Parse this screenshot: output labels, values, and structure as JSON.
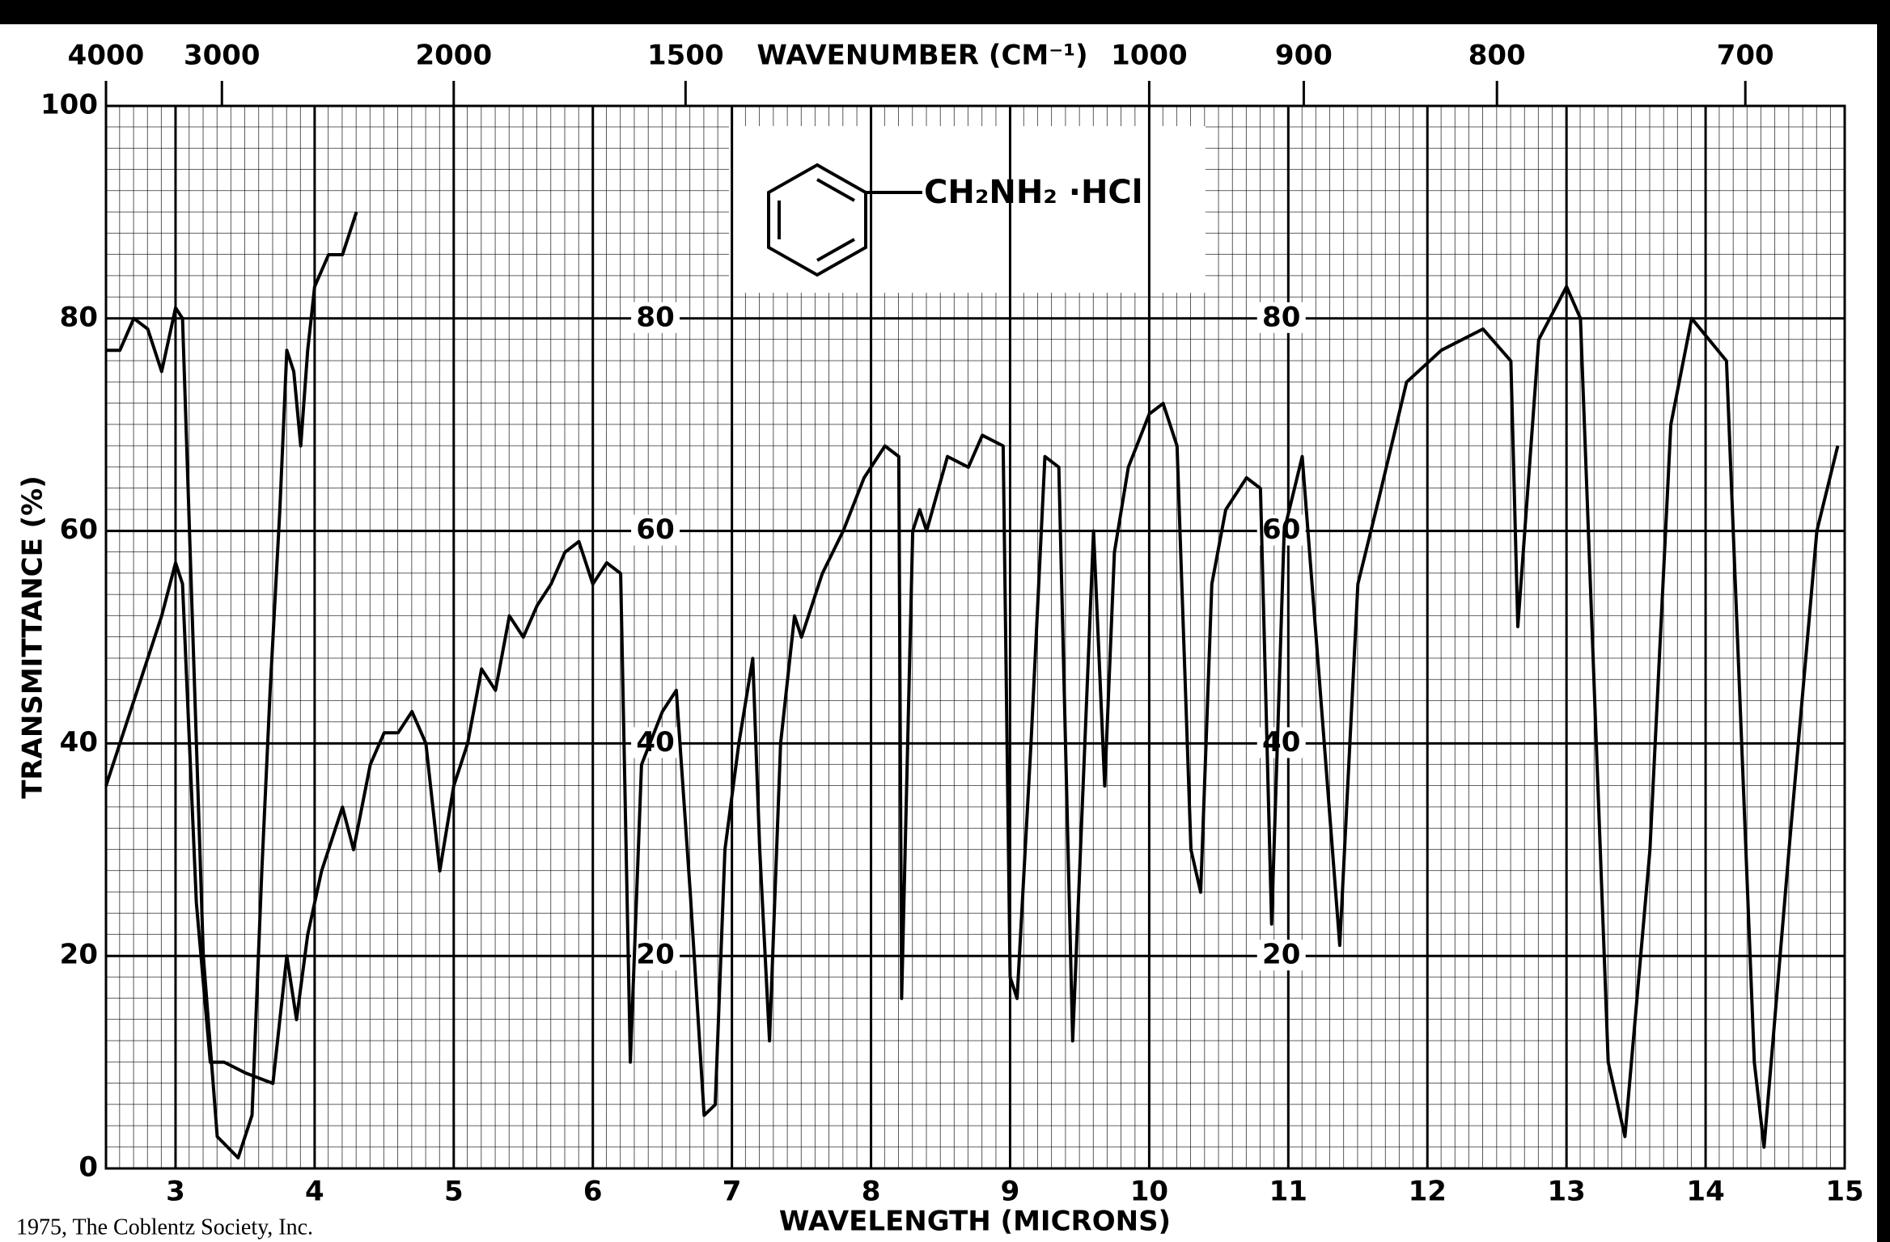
{
  "chart_data": {
    "type": "line",
    "x_label": "WAVELENGTH (MICRONS)",
    "y_label": "TRANSMITTANCE (%)",
    "x2_label": "WAVENUMBER (CM⁻¹)",
    "xlim": [
      2.5,
      15
    ],
    "xticks": [
      3,
      4,
      5,
      6,
      7,
      8,
      9,
      10,
      11,
      12,
      13,
      14,
      15
    ],
    "ylim": [
      0,
      100
    ],
    "yticks": [
      0,
      20,
      40,
      60,
      80,
      100
    ],
    "x2lim": [
      4000,
      666.67
    ],
    "x2scale": "reciprocal",
    "x2ticks": [
      4000,
      3000,
      2000,
      1500,
      1000,
      900,
      800,
      700
    ],
    "inner_yticks": [
      80,
      60,
      40,
      20
    ],
    "grid": true,
    "series": [
      {
        "color": "#000000",
        "x": [
          2.5,
          2.6,
          2.7,
          2.8,
          2.9,
          3.0,
          3.05,
          3.1,
          3.2,
          3.3,
          3.45,
          3.55,
          3.62,
          3.68,
          3.75,
          3.8,
          3.85,
          3.9,
          3.95,
          4.0,
          4.1,
          4.2,
          4.3
        ],
        "values": [
          77,
          77,
          80,
          79,
          75,
          81,
          80,
          60,
          20,
          3,
          1,
          5,
          28,
          45,
          62,
          77,
          75,
          68,
          77,
          83,
          86,
          86,
          90
        ]
      },
      {
        "color": "#000000",
        "x": [
          2.5,
          2.6,
          2.7,
          2.8,
          2.9,
          3.0,
          3.05,
          3.15,
          3.25,
          3.35,
          3.5,
          3.7,
          3.8,
          3.87,
          3.95,
          4.05,
          4.2,
          4.28,
          4.4,
          4.5,
          4.6,
          4.7,
          4.8,
          4.9,
          5.0,
          5.1,
          5.2,
          5.3,
          5.4,
          5.5,
          5.6,
          5.7,
          5.8,
          5.9,
          6.0,
          6.1,
          6.2,
          6.27,
          6.35,
          6.5,
          6.6,
          6.7,
          6.8,
          6.88,
          6.95,
          7.05,
          7.15,
          7.2,
          7.27,
          7.35,
          7.45,
          7.5,
          7.65,
          7.8,
          7.95,
          8.1,
          8.2,
          8.22,
          8.3,
          8.35,
          8.4,
          8.55,
          8.7,
          8.8,
          8.95,
          9.0,
          9.05,
          9.15,
          9.25,
          9.35,
          9.45,
          9.6,
          9.68,
          9.75,
          9.85,
          10.0,
          10.1,
          10.2,
          10.3,
          10.37,
          10.45,
          10.55,
          10.7,
          10.8,
          10.88,
          10.97,
          11.1,
          11.2,
          11.37,
          11.5,
          11.65,
          11.85,
          12.1,
          12.4,
          12.6,
          12.65,
          12.8,
          13.0,
          13.1,
          13.3,
          13.42,
          13.6,
          13.75,
          13.9,
          14.15,
          14.35,
          14.42,
          14.6,
          14.8,
          14.95
        ],
        "values": [
          36,
          40,
          44,
          48,
          52,
          57,
          55,
          25,
          10,
          10,
          9,
          8,
          20,
          14,
          22,
          28,
          34,
          30,
          38,
          41,
          41,
          43,
          40,
          28,
          36,
          40,
          47,
          45,
          52,
          50,
          53,
          55,
          58,
          59,
          55,
          57,
          56,
          10,
          38,
          43,
          45,
          26,
          5,
          6,
          30,
          40,
          48,
          30,
          12,
          40,
          52,
          50,
          56,
          60,
          65,
          68,
          67,
          16,
          60,
          62,
          60,
          67,
          66,
          69,
          68,
          18,
          16,
          40,
          67,
          66,
          12,
          60,
          36,
          58,
          66,
          71,
          72,
          68,
          30,
          26,
          55,
          62,
          65,
          64,
          23,
          60,
          67,
          50,
          21,
          55,
          63,
          74,
          77,
          79,
          76,
          51,
          78,
          83,
          80,
          10,
          3,
          30,
          70,
          80,
          76,
          10,
          2,
          30,
          60,
          68
        ]
      }
    ]
  },
  "structure": {
    "formula": "CH₂NH₂  ·HCl"
  },
  "credit": "1975, The Coblentz Society, Inc."
}
